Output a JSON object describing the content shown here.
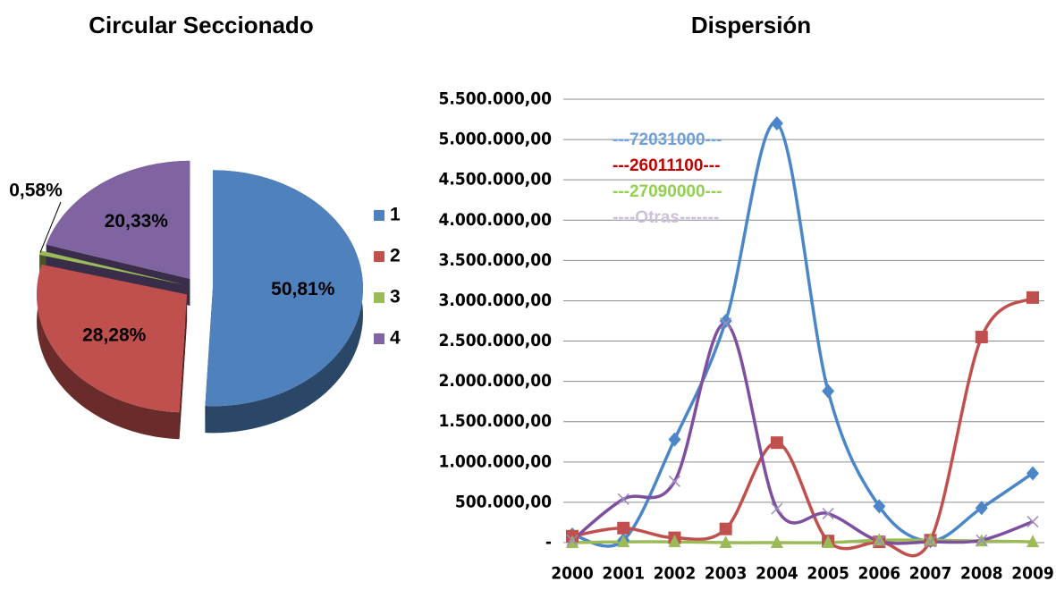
{
  "chart_data": [
    {
      "type": "pie",
      "title": "Circular Seccionado",
      "categories": [
        "1",
        "2",
        "3",
        "4"
      ],
      "values": [
        50.81,
        28.28,
        0.58,
        20.33
      ],
      "value_labels": [
        "50,81%",
        "28,28%",
        "0,58%",
        "20,33%"
      ],
      "colors": [
        "#4f81bd",
        "#c0504d",
        "#9bbb59",
        "#8064a2"
      ],
      "legend": "right"
    },
    {
      "type": "line",
      "title": "Dispersión",
      "categories": [
        "2000",
        "2001",
        "2002",
        "2003",
        "2004",
        "2005",
        "2006",
        "2007",
        "2008",
        "2009"
      ],
      "series": [
        {
          "name": "---72031000---",
          "color": "#4a86c8",
          "marker": "diamond",
          "values": [
            100000,
            30000,
            1280000,
            2750000,
            5200000,
            1880000,
            450000,
            20000,
            430000,
            860000
          ]
        },
        {
          "name": "---26011100---",
          "color": "#c0504d",
          "marker": "square",
          "values": [
            80000,
            180000,
            60000,
            170000,
            1240000,
            20000,
            10000,
            30000,
            2550000,
            3040000
          ]
        },
        {
          "name": "---27090000---",
          "color": "#9bbb59",
          "marker": "triangle",
          "values": [
            0,
            10000,
            10000,
            0,
            0,
            0,
            30000,
            30000,
            20000,
            10000
          ]
        },
        {
          "name": "----Otras-------",
          "color": "#7f4f9f",
          "marker": "x",
          "values": [
            30000,
            540000,
            760000,
            2720000,
            420000,
            360000,
            20000,
            10000,
            30000,
            260000
          ]
        }
      ],
      "legend_text_colors": [
        "#6f9fd8",
        "#c00000",
        "#92d050",
        "#ccc0da"
      ],
      "ylim": [
        0,
        5500000
      ],
      "yticks": [
        {
          "value": 0,
          "label": "-"
        },
        {
          "value": 500000,
          "label": "500.000,00"
        },
        {
          "value": 1000000,
          "label": "1.000.000,00"
        },
        {
          "value": 1500000,
          "label": "1.500.000,00"
        },
        {
          "value": 2000000,
          "label": "2.000.000,00"
        },
        {
          "value": 2500000,
          "label": "2.500.000,00"
        },
        {
          "value": 3000000,
          "label": "3.000.000,00"
        },
        {
          "value": 3500000,
          "label": "3.500.000,00"
        },
        {
          "value": 4000000,
          "label": "4.000.000,00"
        },
        {
          "value": 4500000,
          "label": "4.500.000,00"
        },
        {
          "value": 5000000,
          "label": "5.000.000,00"
        },
        {
          "value": 5500000,
          "label": "5.500.000,00"
        }
      ],
      "grid": true,
      "legend": "upper left",
      "smooth": true
    }
  ]
}
